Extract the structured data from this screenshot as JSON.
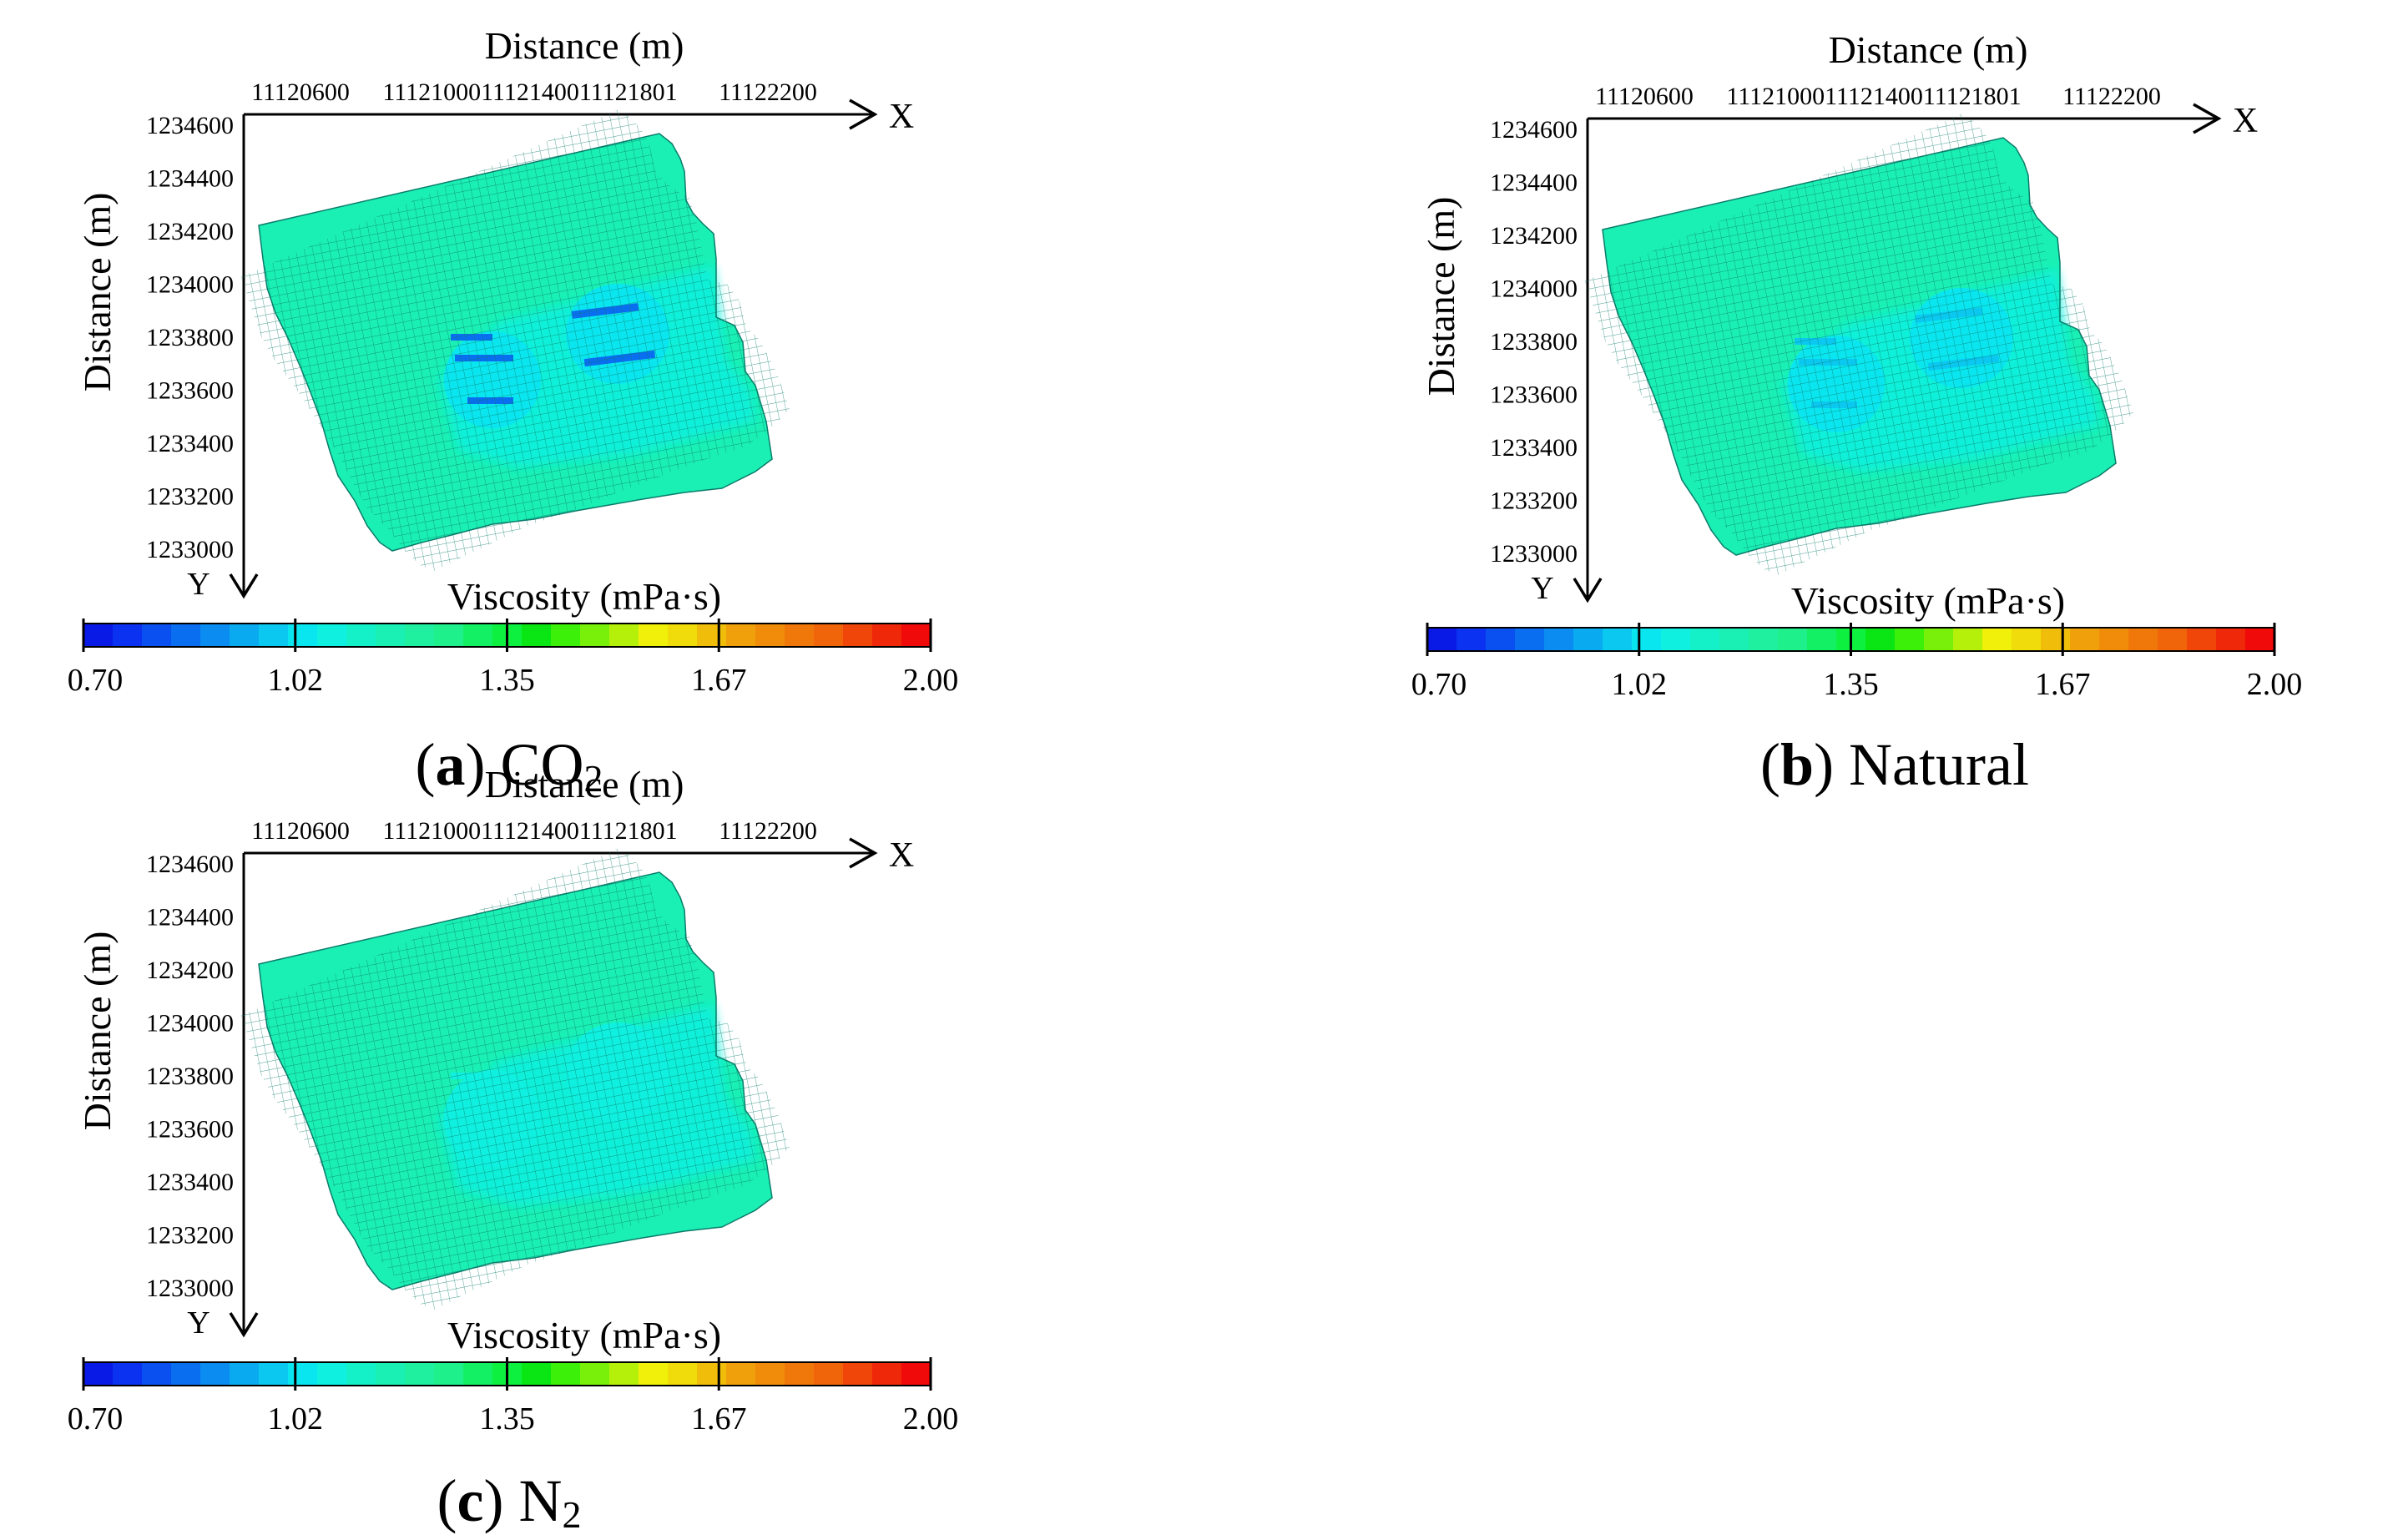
{
  "colorbar": {
    "title": "Viscosity (mPa·s)",
    "min": 0.7,
    "max": 2.0,
    "tick_labels": [
      "0.70",
      "1.02",
      "1.35",
      "1.67",
      "2.00"
    ],
    "colors": [
      "#0a1ae6",
      "#0a32f0",
      "#0a50f0",
      "#0a6ef0",
      "#0a8cf0",
      "#0aaaf0",
      "#0ac8f0",
      "#0ae6f0",
      "#0ff0e0",
      "#14f0c8",
      "#1af0b4",
      "#1ff0a0",
      "#1ef08c",
      "#14f064",
      "#0ef040",
      "#0ae614",
      "#3cf00a",
      "#78f00a",
      "#b4f00a",
      "#f0f00a",
      "#f0dc0a",
      "#f0be0a",
      "#f0a00a",
      "#f08c0a",
      "#f0780a",
      "#f0640a",
      "#f0460a",
      "#f0280a",
      "#f00a0a"
    ]
  },
  "chart_data": [
    {
      "type": "heatmap",
      "panel": "a",
      "caption_letter": "a",
      "caption_text": "CO",
      "caption_sub": "2",
      "title": "Distance (m)",
      "xlabel": "X",
      "ylabel": "Distance (m)",
      "y_axis_arrow_label": "Y",
      "x_tick_labels": [
        "11120600",
        "111210001112140011121801",
        "11122200"
      ],
      "y_tick_labels": [
        "1234600",
        "1234400",
        "1234200",
        "1234000",
        "1233800",
        "1233600",
        "1233400",
        "1233200",
        "1233000"
      ],
      "background_value": 1.18,
      "zone_values": [
        1.1,
        1.05
      ],
      "stripe_value": 0.85,
      "colorbar_ref": "colorbar"
    },
    {
      "type": "heatmap",
      "panel": "b",
      "caption_letter": "b",
      "caption_text": "Natural",
      "caption_sub": "",
      "title": "Distance (m)",
      "xlabel": "X",
      "ylabel": "Distance (m)",
      "y_axis_arrow_label": "Y",
      "x_tick_labels": [
        "11120600",
        "111210001112140011121801",
        "11122200"
      ],
      "y_tick_labels": [
        "1234600",
        "1234400",
        "1234200",
        "1234000",
        "1233800",
        "1233600",
        "1233400",
        "1233200",
        "1233000"
      ],
      "background_value": 1.18,
      "zone_values": [
        1.1,
        1.05
      ],
      "stripe_value": 0.98,
      "colorbar_ref": "colorbar"
    },
    {
      "type": "heatmap",
      "panel": "c",
      "caption_letter": "c",
      "caption_text": "N",
      "caption_sub": "2",
      "title": "Distance (m)",
      "xlabel": "X",
      "ylabel": "Distance (m)",
      "y_axis_arrow_label": "Y",
      "x_tick_labels": [
        "11120600",
        "111210001112140011121801",
        "11122200"
      ],
      "y_tick_labels": [
        "1234600",
        "1234400",
        "1234200",
        "1234000",
        "1233800",
        "1233600",
        "1233400",
        "1233200",
        "1233000"
      ],
      "background_value": 1.18,
      "zone_values": [
        1.1,
        1.08
      ],
      "stripe_value": 1.06,
      "colorbar_ref": "colorbar"
    }
  ]
}
